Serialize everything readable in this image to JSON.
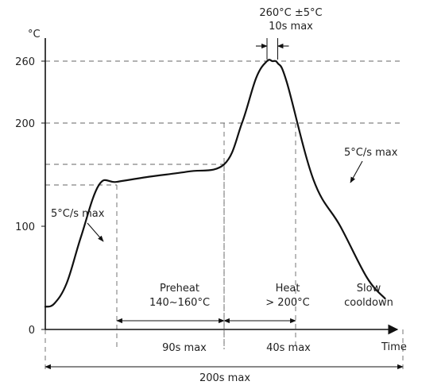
{
  "chart_data": {
    "type": "line",
    "title": "",
    "xlabel": "Time",
    "ylabel": "°C",
    "yticks": [
      0,
      100,
      200,
      260
    ],
    "ylim": [
      0,
      270
    ],
    "xlim": [
      0,
      210
    ],
    "grid": false,
    "series": [
      {
        "x": [
          0,
          5,
          12,
          20,
          30,
          40,
          58,
          80,
          100,
          110,
          118,
          124,
          127,
          130,
          135,
          150,
          165,
          180,
          190
        ],
        "y": [
          22,
          25,
          45,
          90,
          140,
          143,
          148,
          153,
          160,
          200,
          244,
          260,
          260,
          258,
          240,
          145,
          100,
          50,
          30
        ]
      }
    ],
    "reference_lines": [
      {
        "y": 260
      },
      {
        "y": 200
      },
      {
        "y": 160
      },
      {
        "y": 140
      }
    ],
    "annotations": {
      "peak_line1": "260°C ±5°C",
      "peak_line2": "10s max",
      "rate_up": "5°C/s max",
      "rate_down": "5°C/s max",
      "preheat_line1": "Preheat",
      "preheat_line2": "140~160°C",
      "heat_line1": "Heat",
      "heat_line2": "> 200°C",
      "cool_line1": "Slow",
      "cool_line2": "cooldown",
      "preheat_duration": "90s max",
      "heat_duration": "40s max",
      "total_duration": "200s max"
    },
    "intervals": {
      "peak": [
        124,
        130
      ],
      "preheat": [
        40,
        100
      ],
      "heat": [
        100,
        140
      ],
      "total": [
        0,
        200
      ]
    }
  }
}
